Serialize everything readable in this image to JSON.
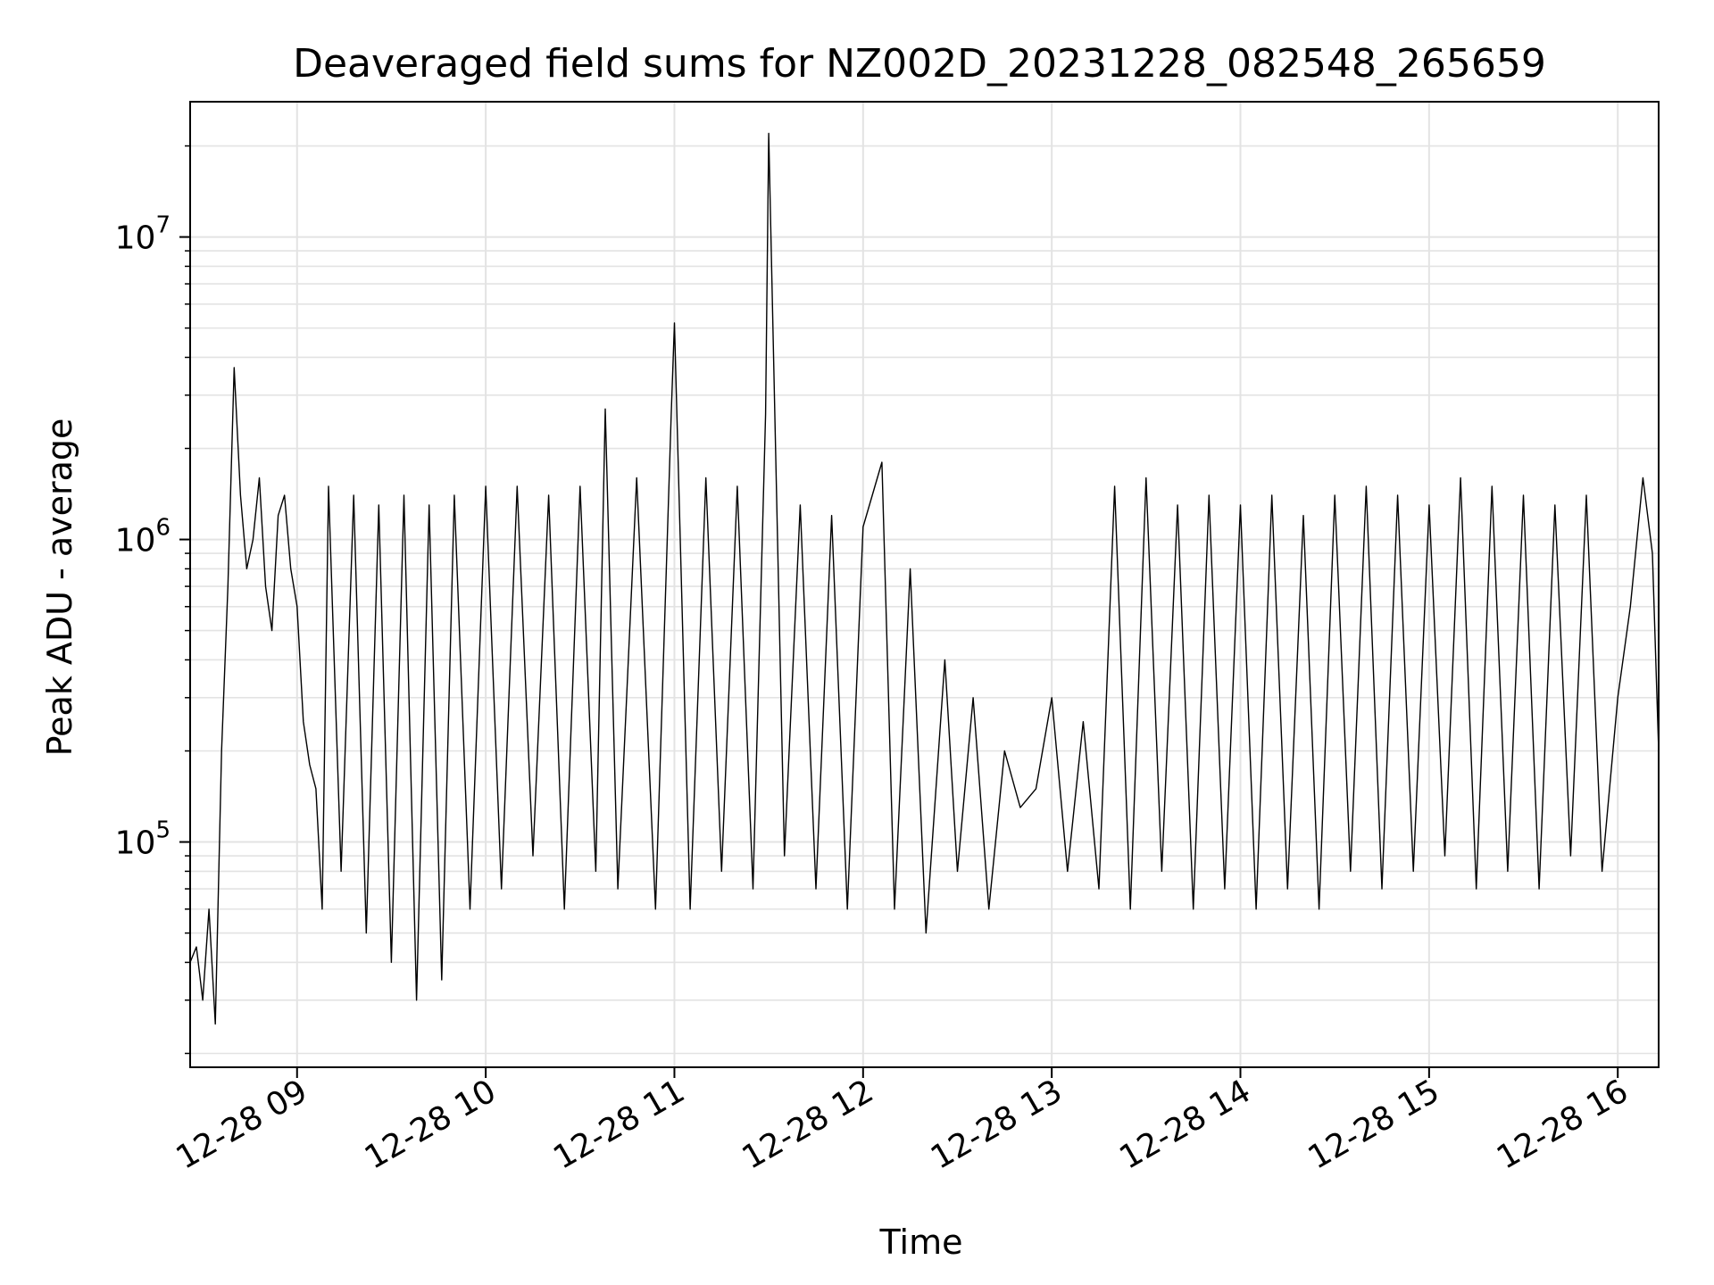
{
  "chart_data": {
    "type": "line",
    "title": "Deaveraged field sums for NZ002D_20231228_082548_265659",
    "xlabel": "Time",
    "ylabel": "Peak ADU - average",
    "yscale": "log",
    "ylim": [
      18000,
      28000000
    ],
    "xlim": [
      "2023-12-28 08:26",
      "2023-12-28 16:13"
    ],
    "x_ticks": [
      {
        "t": "2023-12-28 09:00",
        "label": "12-28 09"
      },
      {
        "t": "2023-12-28 10:00",
        "label": "12-28 10"
      },
      {
        "t": "2023-12-28 11:00",
        "label": "12-28 11"
      },
      {
        "t": "2023-12-28 12:00",
        "label": "12-28 12"
      },
      {
        "t": "2023-12-28 13:00",
        "label": "12-28 13"
      },
      {
        "t": "2023-12-28 14:00",
        "label": "12-28 14"
      },
      {
        "t": "2023-12-28 15:00",
        "label": "12-28 15"
      },
      {
        "t": "2023-12-28 16:00",
        "label": "12-28 16"
      }
    ],
    "y_ticks": [
      {
        "value": 100000,
        "base": "10",
        "exp": "5"
      },
      {
        "value": 1000000,
        "base": "10",
        "exp": "6"
      },
      {
        "value": 10000000,
        "base": "10",
        "exp": "7"
      }
    ],
    "grid": true,
    "line_color": "#000000",
    "series": [
      {
        "x": [
          "2023-12-28 08:26",
          "2023-12-28 08:28",
          "2023-12-28 08:30",
          "2023-12-28 08:32",
          "2023-12-28 08:34",
          "2023-12-28 08:36",
          "2023-12-28 08:38",
          "2023-12-28 08:40",
          "2023-12-28 08:42",
          "2023-12-28 08:44",
          "2023-12-28 08:46",
          "2023-12-28 08:48",
          "2023-12-28 08:50",
          "2023-12-28 08:52",
          "2023-12-28 08:54",
          "2023-12-28 08:56",
          "2023-12-28 08:58",
          "2023-12-28 09:00",
          "2023-12-28 09:02",
          "2023-12-28 09:04",
          "2023-12-28 09:06",
          "2023-12-28 09:08",
          "2023-12-28 09:10",
          "2023-12-28 09:14",
          "2023-12-28 09:18",
          "2023-12-28 09:22",
          "2023-12-28 09:26",
          "2023-12-28 09:30",
          "2023-12-28 09:34",
          "2023-12-28 09:38",
          "2023-12-28 09:42",
          "2023-12-28 09:46",
          "2023-12-28 09:50",
          "2023-12-28 09:55",
          "2023-12-28 10:00",
          "2023-12-28 10:05",
          "2023-12-28 10:10",
          "2023-12-28 10:15",
          "2023-12-28 10:20",
          "2023-12-28 10:25",
          "2023-12-28 10:30",
          "2023-12-28 10:35",
          "2023-12-28 10:38",
          "2023-12-28 10:42",
          "2023-12-28 10:48",
          "2023-12-28 10:54",
          "2023-12-28 10:59",
          "2023-12-28 11:00",
          "2023-12-28 11:05",
          "2023-12-28 11:10",
          "2023-12-28 11:15",
          "2023-12-28 11:20",
          "2023-12-28 11:25",
          "2023-12-28 11:29",
          "2023-12-28 11:30",
          "2023-12-28 11:35",
          "2023-12-28 11:40",
          "2023-12-28 11:45",
          "2023-12-28 11:50",
          "2023-12-28 11:55",
          "2023-12-28 12:00",
          "2023-12-28 12:06",
          "2023-12-28 12:10",
          "2023-12-28 12:15",
          "2023-12-28 12:20",
          "2023-12-28 12:26",
          "2023-12-28 12:30",
          "2023-12-28 12:35",
          "2023-12-28 12:40",
          "2023-12-28 12:45",
          "2023-12-28 12:50",
          "2023-12-28 12:55",
          "2023-12-28 13:00",
          "2023-12-28 13:05",
          "2023-12-28 13:10",
          "2023-12-28 13:15",
          "2023-12-28 13:20",
          "2023-12-28 13:25",
          "2023-12-28 13:30",
          "2023-12-28 13:35",
          "2023-12-28 13:40",
          "2023-12-28 13:45",
          "2023-12-28 13:50",
          "2023-12-28 13:55",
          "2023-12-28 14:00",
          "2023-12-28 14:05",
          "2023-12-28 14:10",
          "2023-12-28 14:15",
          "2023-12-28 14:20",
          "2023-12-28 14:25",
          "2023-12-28 14:30",
          "2023-12-28 14:35",
          "2023-12-28 14:40",
          "2023-12-28 14:45",
          "2023-12-28 14:50",
          "2023-12-28 14:55",
          "2023-12-28 15:00",
          "2023-12-28 15:05",
          "2023-12-28 15:10",
          "2023-12-28 15:15",
          "2023-12-28 15:20",
          "2023-12-28 15:25",
          "2023-12-28 15:30",
          "2023-12-28 15:35",
          "2023-12-28 15:40",
          "2023-12-28 15:45",
          "2023-12-28 15:50",
          "2023-12-28 15:55",
          "2023-12-28 16:00",
          "2023-12-28 16:04",
          "2023-12-28 16:08",
          "2023-12-28 16:11",
          "2023-12-28 16:13"
        ],
        "y": [
          40000,
          45000,
          30000,
          60000,
          25000,
          200000,
          700000,
          3700000,
          1400000,
          800000,
          1000000,
          1600000,
          700000,
          500000,
          1200000,
          1400000,
          800000,
          600000,
          250000,
          180000,
          150000,
          60000,
          1500000,
          80000,
          1400000,
          50000,
          1300000,
          40000,
          1400000,
          30000,
          1300000,
          35000,
          1400000,
          60000,
          1500000,
          70000,
          1500000,
          90000,
          1400000,
          60000,
          1500000,
          80000,
          2700000,
          70000,
          1600000,
          60000,
          2600000,
          5200000,
          60000,
          1600000,
          80000,
          1500000,
          70000,
          2600000,
          22000000,
          90000,
          1300000,
          70000,
          1200000,
          60000,
          1100000,
          1800000,
          60000,
          800000,
          50000,
          400000,
          80000,
          300000,
          60000,
          200000,
          130000,
          150000,
          300000,
          80000,
          250000,
          70000,
          1500000,
          60000,
          1600000,
          80000,
          1300000,
          60000,
          1400000,
          70000,
          1300000,
          60000,
          1400000,
          70000,
          1200000,
          60000,
          1400000,
          80000,
          1500000,
          70000,
          1400000,
          80000,
          1300000,
          90000,
          1600000,
          70000,
          1500000,
          80000,
          1400000,
          70000,
          1300000,
          90000,
          1400000,
          80000,
          300000,
          600000,
          1600000,
          900000,
          200000
        ]
      }
    ]
  }
}
